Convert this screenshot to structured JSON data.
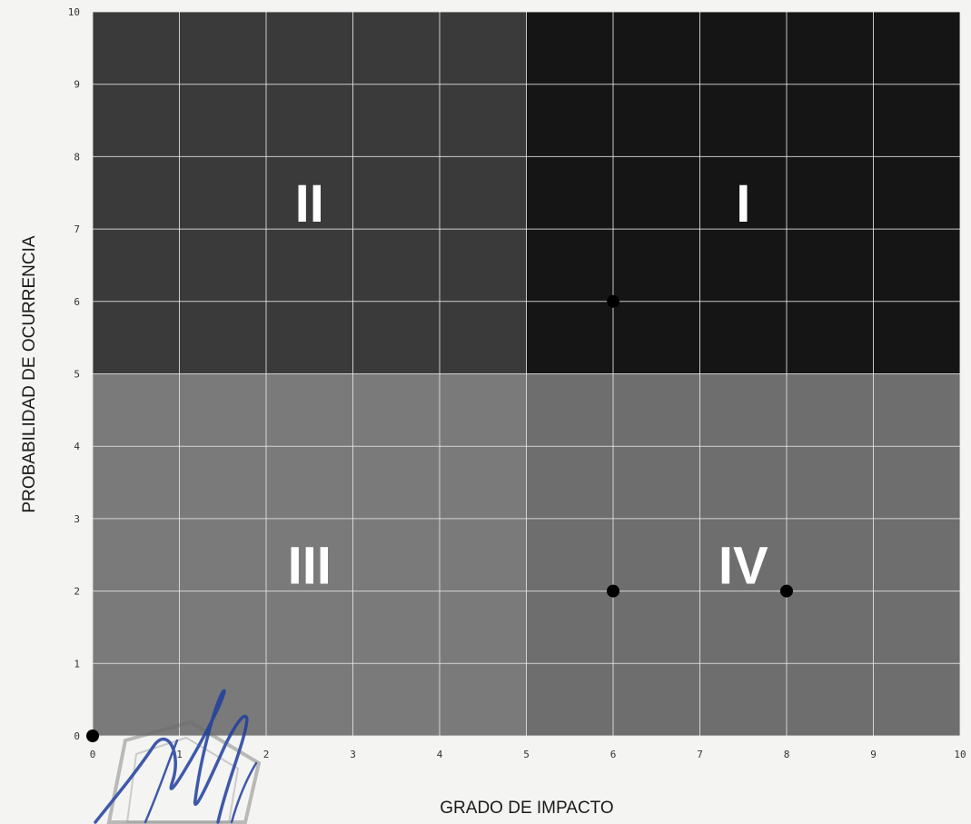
{
  "chart_data": {
    "type": "scatter",
    "title": "",
    "xlabel": "GRADO DE IMPACTO",
    "ylabel": "PROBABILIDAD DE OCURRENCIA",
    "xlim": [
      0,
      10
    ],
    "ylim": [
      0,
      10
    ],
    "grid": true,
    "x_ticks": [
      "0",
      "1",
      "2",
      "3",
      "4",
      "5",
      "6",
      "7",
      "8",
      "9",
      "10"
    ],
    "y_ticks": [
      "0",
      "1",
      "2",
      "3",
      "4",
      "5",
      "6",
      "7",
      "8",
      "9",
      "10"
    ],
    "quadrants": [
      {
        "label": "I",
        "x_range": [
          5,
          10
        ],
        "y_range": [
          5,
          10
        ],
        "color": "#151515"
      },
      {
        "label": "II",
        "x_range": [
          0,
          5
        ],
        "y_range": [
          5,
          10
        ],
        "color": "#3a3a3a"
      },
      {
        "label": "III",
        "x_range": [
          0,
          5
        ],
        "y_range": [
          0,
          5
        ],
        "color": "#7a7a7a"
      },
      {
        "label": "IV",
        "x_range": [
          5,
          10
        ],
        "y_range": [
          0,
          5
        ],
        "color": "#6e6e6e"
      }
    ],
    "points": [
      {
        "x": 0,
        "y": 0
      },
      {
        "x": 6,
        "y": 6
      },
      {
        "x": 6,
        "y": 2
      },
      {
        "x": 8,
        "y": 2
      }
    ]
  },
  "stamp": {
    "icon": "seal-stamp-with-signature-icon",
    "ink_color": "#1f3f9e"
  }
}
